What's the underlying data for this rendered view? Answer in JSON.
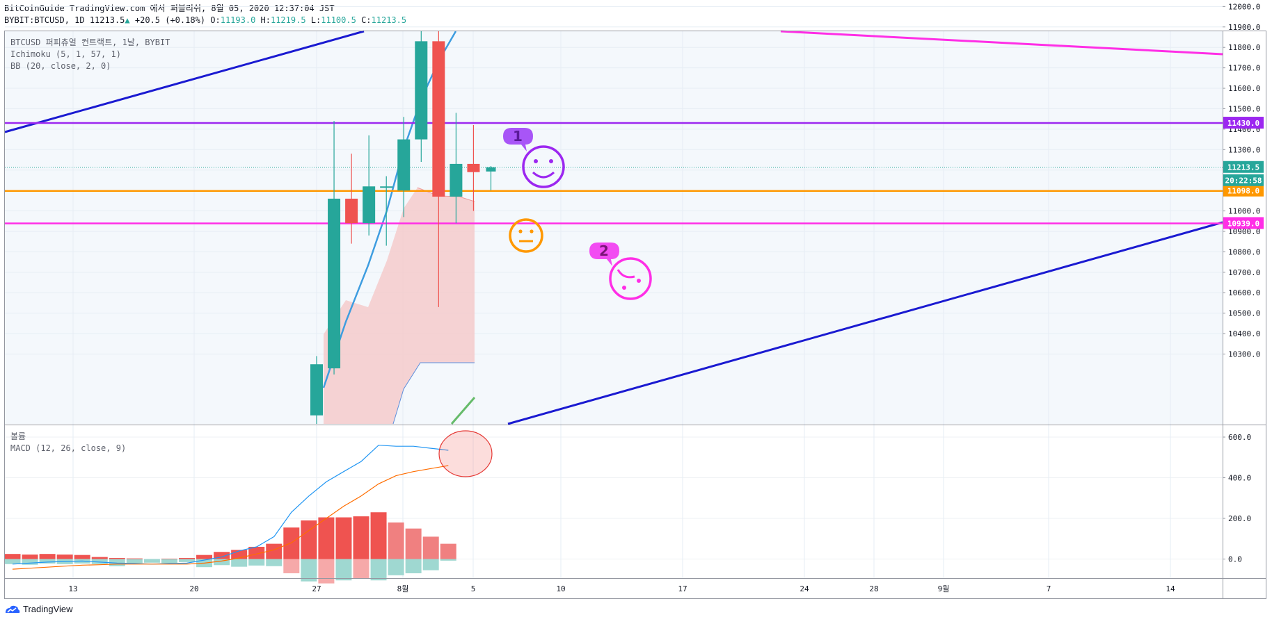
{
  "header": {
    "line1": "BitCoinGuide TradingView.com 에서 퍼블리쉬, 8월 05, 2020 12:37:04 JST",
    "symbol": "BYBIT:BTCUSD, 1D",
    "last": "11213.5",
    "change_arrow": "▲",
    "change": "+20.5 (+0.18%)",
    "o_label": "O:",
    "o": "11193.0",
    "h_label": "H:",
    "h": "11219.5",
    "l_label": "L:",
    "l": "11100.5",
    "c_label": "C:",
    "c": "11213.5"
  },
  "legend": {
    "main": [
      "BTCUSD 퍼피츄얼 컨트랙트, 1날, BYBIT",
      "Ichimoku (5, 1, 57, 1)",
      "BB (20, close, 2, 0)"
    ],
    "lower": [
      "볼륨",
      "MACD (12, 26, close, 9)"
    ]
  },
  "footer": {
    "brand": "TradingView"
  },
  "annotations": {
    "label1": "1",
    "label2": "2"
  },
  "colors": {
    "up": "#26a69a",
    "down": "#ef5350",
    "purple_line": "#9c27f0",
    "orange_line": "#ff9800",
    "magenta_line": "#ff2ee6",
    "blue_trend": "#1a1ad1",
    "bb_line": "#3e9de0",
    "cloud": "#f6c6c6",
    "macd_line": "#2196f3",
    "signal_line": "#ff6d00"
  },
  "chart_data": [
    {
      "type": "candlestick",
      "title": "BTCUSD 퍼피츄얼 컨트랙트, 1날, BYBIT",
      "ylim": [
        10200,
        12080
      ],
      "y_ticks": [
        10300,
        10400,
        10500,
        10600,
        10700,
        10800,
        10900,
        11000,
        11100,
        11200,
        11300,
        11400,
        11500,
        11600,
        11700,
        11800,
        11900,
        12000
      ],
      "x_ticks": [
        "13",
        "20",
        "27",
        "8월",
        "5",
        "10",
        "17",
        "24",
        "28",
        "9월",
        "7",
        "14"
      ],
      "candles": [
        {
          "date": "2020-07-26",
          "open": 10000,
          "high": 10290,
          "low": 9900,
          "close": 10250
        },
        {
          "date": "2020-07-27",
          "open": 10230,
          "high": 11440,
          "low": 10200,
          "close": 11060
        },
        {
          "date": "2020-07-28",
          "open": 11060,
          "high": 11280,
          "low": 10840,
          "close": 10940
        },
        {
          "date": "2020-07-29",
          "open": 10940,
          "high": 11370,
          "low": 10880,
          "close": 11120
        },
        {
          "date": "2020-07-30",
          "open": 11120,
          "high": 11170,
          "low": 10830,
          "close": 11120
        },
        {
          "date": "2020-07-31",
          "open": 11100,
          "high": 11460,
          "low": 10970,
          "close": 11350
        },
        {
          "date": "2020-08-01",
          "open": 11350,
          "high": 11910,
          "low": 11240,
          "close": 11830
        },
        {
          "date": "2020-08-02",
          "open": 11830,
          "high": 12070,
          "low": 10530,
          "close": 11070
        },
        {
          "date": "2020-08-03",
          "open": 11070,
          "high": 11480,
          "low": 10940,
          "close": 11230
        },
        {
          "date": "2020-08-04",
          "open": 11230,
          "high": 11420,
          "low": 11000,
          "close": 11190
        },
        {
          "date": "2020-08-05",
          "open": 11193,
          "high": 11219.5,
          "low": 11100.5,
          "close": 11213.5
        }
      ],
      "horizontal_lines": [
        {
          "value": 11430.0,
          "label": "11430.0",
          "color": "#9c27f0"
        },
        {
          "value": 11098.0,
          "label": "11098.0",
          "color": "#ff9800"
        },
        {
          "value": 10939.0,
          "label": "10939.0",
          "color": "#ff2ee6"
        }
      ],
      "price_labels": {
        "last": "11213.5",
        "countdown": "20:22:58"
      }
    },
    {
      "type": "line",
      "title": "MACD (12, 26, close, 9)",
      "ylim": [
        -110,
        640
      ],
      "y_ticks": [
        0,
        200,
        400,
        600
      ],
      "y_tick_labels": [
        "0.0",
        "200.0",
        "400.0",
        "600.0"
      ],
      "series": [
        {
          "name": "MACD",
          "values": [
            -25,
            -20,
            -15,
            -12,
            -10,
            -15,
            -20,
            -22,
            -25,
            -22,
            -20,
            -5,
            10,
            40,
            60,
            110,
            230,
            310,
            380,
            430,
            480,
            560,
            555,
            555,
            545,
            535
          ]
        },
        {
          "name": "Signal",
          "values": [
            -50,
            -45,
            -40,
            -35,
            -30,
            -28,
            -25,
            -25,
            -25,
            -25,
            -25,
            -20,
            -10,
            5,
            25,
            45,
            80,
            140,
            200,
            260,
            310,
            370,
            410,
            430,
            445,
            460
          ]
        }
      ],
      "histogram": [
        25,
        22,
        25,
        22,
        20,
        10,
        5,
        3,
        0,
        2,
        5,
        20,
        35,
        45,
        60,
        75,
        155,
        190,
        205,
        205,
        210,
        230,
        180,
        150,
        110,
        75
      ],
      "volume": [
        -25,
        -28,
        -22,
        -25,
        -22,
        -25,
        -35,
        -20,
        -18,
        -20,
        -15,
        -40,
        -30,
        -38,
        -32,
        -35,
        -70,
        -110,
        -120,
        -105,
        -95,
        -105,
        -80,
        -70,
        -55,
        -8
      ]
    }
  ]
}
